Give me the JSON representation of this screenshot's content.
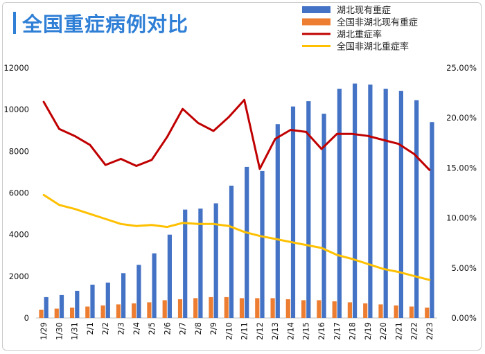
{
  "title": "全国重症病例对比",
  "colors": {
    "accent": "#2f7fd6",
    "hubei_bar": "#4472c4",
    "other_bar": "#ed7d31",
    "hubei_line": "#c00000",
    "other_line": "#ffc000"
  },
  "chart_data": {
    "type": "bar",
    "categories": [
      "1/29",
      "1/30",
      "1/31",
      "2/1",
      "2/2",
      "2/3",
      "2/4",
      "2/5",
      "2/6",
      "2/7",
      "2/8",
      "2/9",
      "2/10",
      "2/11",
      "2/12",
      "2/13",
      "2/14",
      "2/15",
      "2/16",
      "2/17",
      "2/18",
      "2/19",
      "2/20",
      "2/21",
      "2/22",
      "2/23"
    ],
    "series": [
      {
        "name": "湖北现有重症",
        "type": "bar",
        "axis": "left",
        "values": [
          1000,
          1100,
          1300,
          1600,
          1700,
          2150,
          2550,
          3100,
          4000,
          5200,
          5250,
          5500,
          6350,
          7250,
          7050,
          9300,
          10150,
          10400,
          9800,
          11000,
          11250,
          11200,
          11000,
          10900,
          10450,
          9400
        ]
      },
      {
        "name": "全国非湖北现有重症",
        "type": "bar",
        "axis": "left",
        "values": [
          400,
          450,
          500,
          550,
          600,
          650,
          700,
          750,
          850,
          900,
          950,
          1000,
          1000,
          950,
          950,
          950,
          900,
          850,
          850,
          800,
          750,
          700,
          650,
          600,
          550,
          500
        ]
      },
      {
        "name": "湖北重症率",
        "type": "line",
        "axis": "right",
        "values": [
          21.6,
          18.9,
          18.2,
          17.3,
          15.3,
          15.9,
          15.2,
          15.8,
          18.1,
          20.9,
          19.5,
          18.7,
          20.1,
          21.8,
          14.9,
          17.9,
          18.8,
          18.6,
          16.9,
          18.4,
          18.4,
          18.2,
          17.8,
          17.4,
          16.4,
          14.8
        ]
      },
      {
        "name": "全国非湖北重症率",
        "type": "line",
        "axis": "right",
        "values": [
          12.3,
          11.3,
          10.9,
          10.4,
          9.9,
          9.4,
          9.2,
          9.3,
          9.1,
          9.5,
          9.4,
          9.4,
          9.2,
          8.6,
          8.2,
          7.9,
          7.6,
          7.3,
          7.0,
          6.3,
          5.9,
          5.4,
          4.9,
          4.6,
          4.2,
          3.8
        ]
      }
    ],
    "ylim": [
      0,
      12000
    ],
    "yticks": [
      "0",
      "2000",
      "4000",
      "6000",
      "8000",
      "10000",
      "12000"
    ],
    "y2lim": [
      0,
      25
    ],
    "y2ticks": [
      "0.00%",
      "5.00%",
      "10.00%",
      "15.00%",
      "20.00%",
      "25.00%"
    ],
    "grid": false,
    "legend": "top-right"
  }
}
